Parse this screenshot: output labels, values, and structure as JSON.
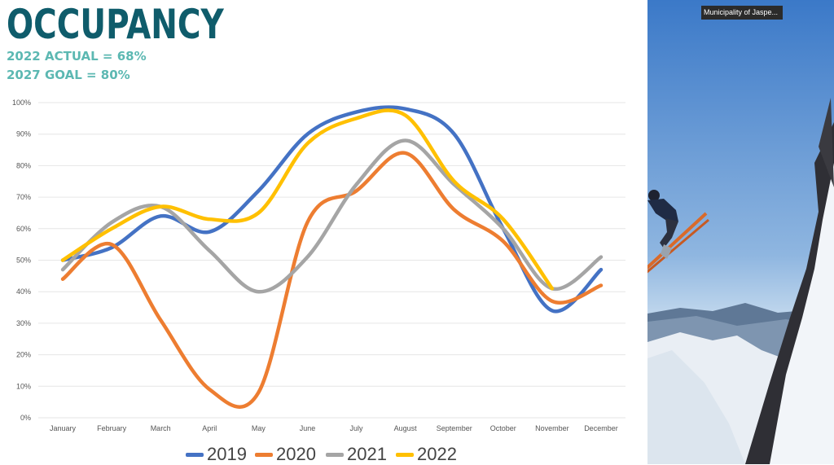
{
  "header": {
    "title": "OCCUPANCY",
    "subtitle_1": "2022 ACTUAL = 68%",
    "subtitle_2": "2027 GOAL = 80%"
  },
  "colors": {
    "title": "#0f5c6b",
    "subtitle": "#5cb8b2",
    "grid": "#e6e6e6",
    "axis_text": "#555555"
  },
  "video_label": "Municipality of Jaspe...",
  "chart_data": {
    "type": "line",
    "categories": [
      "January",
      "February",
      "March",
      "April",
      "May",
      "June",
      "July",
      "August",
      "September",
      "October",
      "November",
      "December"
    ],
    "ylim": [
      0,
      100
    ],
    "yticks": [
      0,
      10,
      20,
      30,
      40,
      50,
      60,
      70,
      80,
      90,
      100
    ],
    "ytick_labels": [
      "0%",
      "10%",
      "20%",
      "30%",
      "40%",
      "50%",
      "60%",
      "70%",
      "80%",
      "90%",
      "100%"
    ],
    "grid": true,
    "legend_position": "bottom",
    "series": [
      {
        "name": "2019",
        "color": "#4472c4",
        "values": [
          50,
          54,
          64,
          59,
          72,
          90,
          97,
          98,
          90,
          60,
          34,
          47
        ]
      },
      {
        "name": "2020",
        "color": "#ed7d31",
        "values": [
          44,
          55,
          31,
          9,
          8,
          62,
          72,
          84,
          66,
          56,
          37,
          42
        ]
      },
      {
        "name": "2021",
        "color": "#a5a5a5",
        "values": [
          47,
          62,
          67,
          53,
          40,
          51,
          74,
          88,
          74,
          60,
          41,
          51
        ]
      },
      {
        "name": "2022",
        "color": "#ffc000",
        "values": [
          50,
          60,
          67,
          63,
          65,
          87,
          95,
          96,
          75,
          63,
          41,
          null
        ]
      }
    ]
  }
}
